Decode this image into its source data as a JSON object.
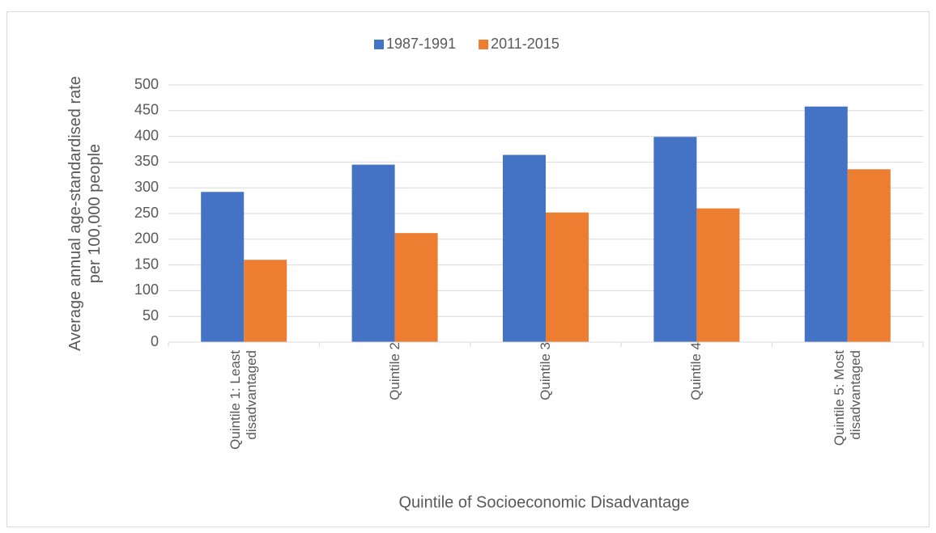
{
  "chart_data": {
    "type": "bar",
    "x_label": "Quintile of Socioeconomic Disadvantage",
    "y_label": "Average annual age-standardised rate per 100,000 people",
    "categories": [
      "Quintile 1: Least disadvantaged",
      "Quintile 2",
      "Quintile 3",
      "Quintile 4",
      "Quintile 5: Most disadvantaged"
    ],
    "series": [
      {
        "name": "1987-1991",
        "color": "#4472c4",
        "values": [
          292,
          345,
          364,
          399,
          458
        ]
      },
      {
        "name": "2011-2015",
        "color": "#ed7d31",
        "values": [
          160,
          212,
          252,
          260,
          336
        ]
      }
    ],
    "ylim": [
      0,
      500
    ],
    "yticks": [
      0,
      50,
      100,
      150,
      200,
      250,
      300,
      350,
      400,
      450,
      500
    ],
    "grid": true,
    "legend": "top"
  }
}
